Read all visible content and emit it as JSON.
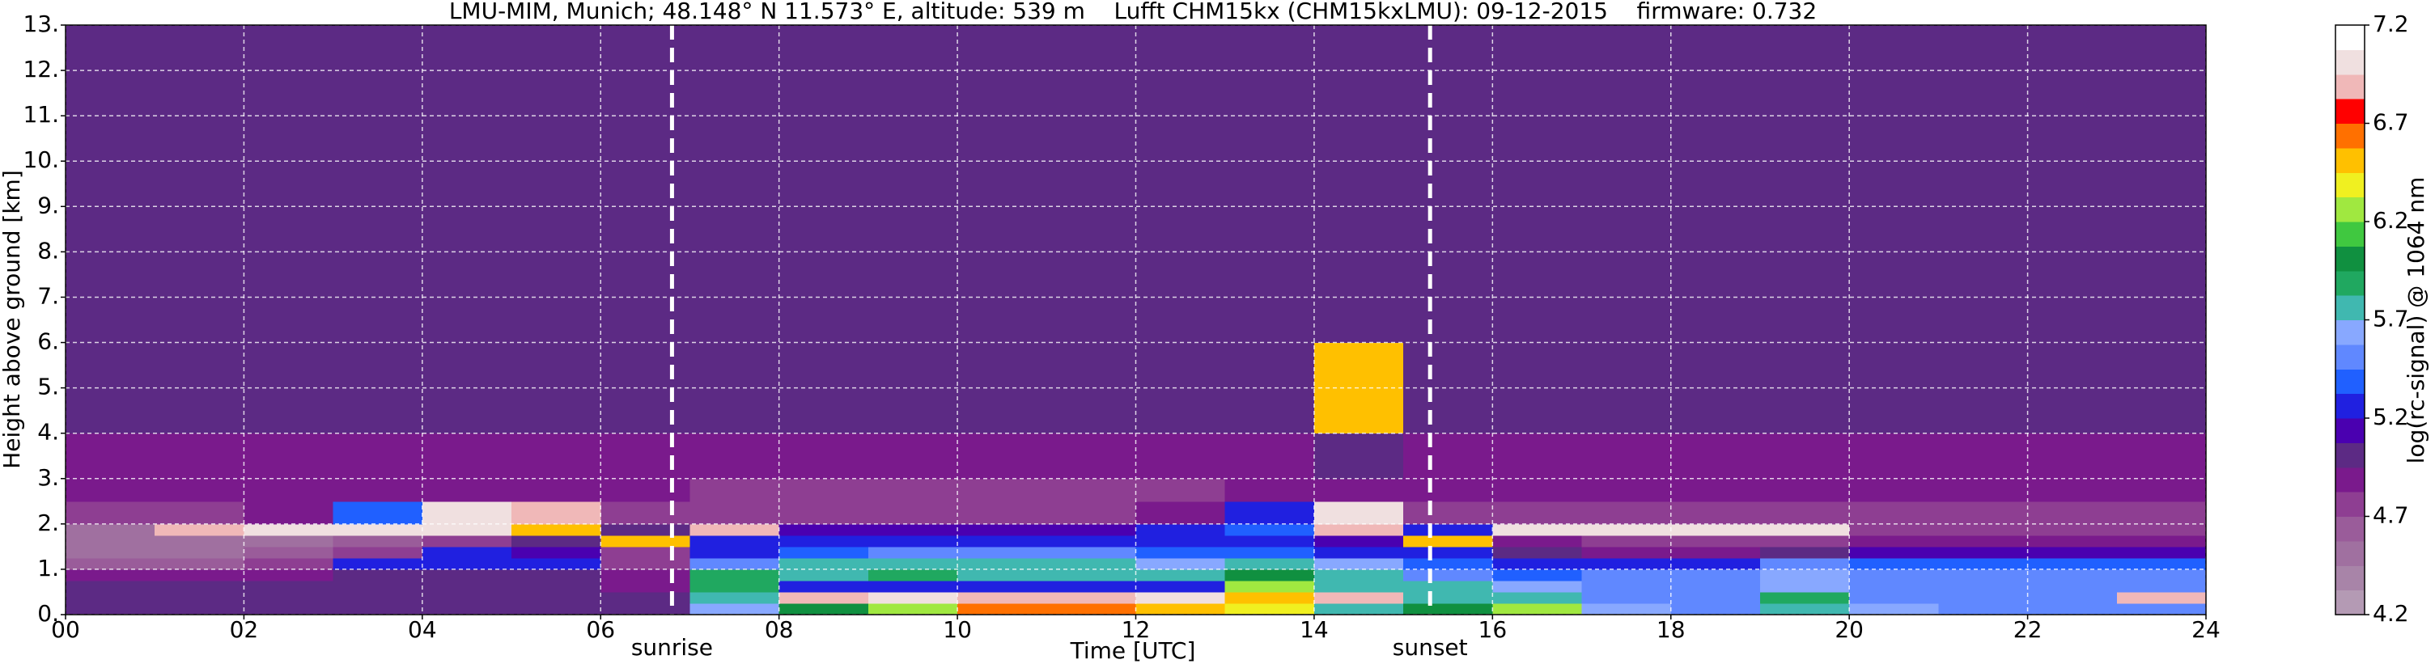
{
  "chart_data": {
    "type": "heatmap",
    "title": "LMU-MIM, Munich; 48.148° N 11.573° E, altitude: 539 m    Lufft CHM15kx (CHM15kxLMU): 09-12-2015    firmware: 0.732",
    "x_label": "Time [UTC]",
    "y_label": "Height above ground [km]",
    "xlim": [
      0,
      24
    ],
    "ylim": [
      0,
      13
    ],
    "xticks": [
      {
        "value": 0,
        "label": "00"
      },
      {
        "value": 2,
        "label": "02"
      },
      {
        "value": 4,
        "label": "04"
      },
      {
        "value": 6,
        "label": "06"
      },
      {
        "value": 8,
        "label": "08"
      },
      {
        "value": 10,
        "label": "10"
      },
      {
        "value": 12,
        "label": "12"
      },
      {
        "value": 14,
        "label": "14"
      },
      {
        "value": 16,
        "label": "16"
      },
      {
        "value": 18,
        "label": "18"
      },
      {
        "value": 20,
        "label": "20"
      },
      {
        "value": 22,
        "label": "22"
      },
      {
        "value": 24,
        "label": "24"
      }
    ],
    "yticks": [
      {
        "value": 0,
        "label": "0."
      },
      {
        "value": 1,
        "label": "1."
      },
      {
        "value": 2,
        "label": "2."
      },
      {
        "value": 3,
        "label": "3."
      },
      {
        "value": 4,
        "label": "4."
      },
      {
        "value": 5,
        "label": "5."
      },
      {
        "value": 6,
        "label": "6."
      },
      {
        "value": 7,
        "label": "7."
      },
      {
        "value": 8,
        "label": "8."
      },
      {
        "value": 9,
        "label": "9."
      },
      {
        "value": 10,
        "label": "10."
      },
      {
        "value": 11,
        "label": "11."
      },
      {
        "value": 12,
        "label": "12."
      },
      {
        "value": 13,
        "label": "13."
      }
    ],
    "grid": true,
    "x_edges": [
      0,
      1,
      2,
      3,
      4,
      5,
      6,
      7,
      8,
      9,
      10,
      11,
      12,
      13,
      14,
      15,
      16,
      17,
      18,
      19,
      20,
      21,
      22,
      23,
      24
    ],
    "y_edges": [
      0,
      0.25,
      0.5,
      0.75,
      1,
      1.25,
      1.5,
      1.75,
      2,
      2.5,
      3,
      4,
      6,
      9,
      13
    ],
    "values": [
      [
        5.0,
        5.0,
        5.0,
        5.0,
        5.0,
        5.0,
        5.0,
        5.6,
        6.0,
        6.3,
        6.6,
        6.6,
        6.5,
        6.4,
        5.8,
        6.0,
        6.3,
        5.6,
        5.5,
        5.8,
        5.6,
        5.5,
        5.5,
        5.5
      ],
      [
        5.0,
        5.0,
        5.0,
        5.0,
        5.0,
        5.0,
        5.0,
        5.8,
        6.9,
        7.0,
        6.9,
        6.9,
        7.0,
        6.5,
        6.9,
        5.8,
        5.8,
        5.5,
        5.5,
        5.9,
        5.5,
        5.5,
        5.5,
        6.9
      ],
      [
        5.0,
        5.0,
        5.0,
        5.0,
        5.0,
        5.0,
        4.9,
        5.9,
        5.3,
        5.3,
        5.2,
        5.2,
        5.3,
        6.3,
        5.8,
        5.7,
        5.6,
        5.5,
        5.5,
        5.6,
        5.5,
        5.5,
        5.5,
        5.5
      ],
      [
        4.9,
        4.9,
        4.9,
        5.0,
        5.0,
        5.0,
        4.9,
        5.9,
        5.8,
        5.9,
        5.8,
        5.8,
        5.8,
        6.0,
        5.8,
        5.5,
        5.4,
        5.5,
        5.5,
        5.6,
        5.5,
        5.5,
        5.5,
        5.5
      ],
      [
        4.6,
        4.6,
        4.7,
        5.2,
        5.3,
        5.2,
        4.8,
        5.5,
        5.7,
        5.8,
        5.8,
        5.7,
        5.6,
        5.7,
        5.6,
        5.4,
        5.3,
        5.2,
        5.2,
        5.5,
        5.4,
        5.4,
        5.4,
        5.4
      ],
      [
        4.5,
        4.5,
        4.6,
        4.8,
        5.2,
        5.1,
        4.7,
        5.3,
        5.4,
        5.5,
        5.5,
        5.5,
        5.4,
        5.4,
        5.3,
        5.2,
        5.0,
        4.9,
        4.9,
        5.0,
        5.1,
        5.1,
        5.1,
        5.1
      ],
      [
        4.5,
        4.5,
        4.5,
        4.6,
        4.8,
        5.0,
        6.5,
        5.2,
        5.3,
        5.3,
        5.3,
        5.3,
        5.3,
        5.3,
        5.1,
        6.5,
        4.9,
        4.8,
        4.8,
        4.8,
        4.9,
        4.9,
        4.9,
        4.9
      ],
      [
        4.5,
        6.9,
        7.0,
        7.0,
        7.0,
        6.5,
        5.0,
        6.9,
        5.1,
        5.1,
        5.1,
        5.1,
        5.2,
        5.4,
        6.9,
        5.2,
        7.0,
        7.0,
        7.0,
        7.0,
        4.8,
        4.8,
        4.8,
        4.8
      ],
      [
        4.8,
        4.8,
        4.9,
        5.4,
        7.0,
        6.9,
        4.8,
        4.8,
        4.8,
        4.8,
        4.8,
        4.8,
        4.9,
        5.2,
        7.0,
        4.8,
        4.8,
        4.8,
        4.8,
        4.8,
        4.8,
        4.8,
        4.8,
        4.8
      ],
      [
        4.9,
        4.9,
        4.9,
        4.9,
        4.9,
        4.9,
        4.9,
        4.8,
        4.8,
        4.8,
        4.8,
        4.8,
        4.8,
        4.9,
        4.9,
        4.9,
        4.9,
        4.9,
        4.9,
        4.9,
        4.9,
        4.9,
        4.9,
        4.9
      ],
      [
        4.9,
        4.9,
        4.9,
        4.9,
        4.9,
        4.9,
        4.9,
        4.9,
        4.9,
        4.9,
        4.9,
        4.9,
        4.9,
        4.9,
        5.0,
        4.9,
        4.9,
        4.9,
        4.9,
        4.9,
        4.9,
        4.9,
        4.9,
        4.9
      ],
      [
        5.0,
        5.0,
        5.0,
        5.0,
        5.0,
        5.0,
        5.0,
        5.0,
        5.0,
        5.0,
        5.0,
        5.0,
        5.0,
        5.0,
        6.5,
        5.0,
        5.0,
        5.0,
        5.0,
        5.0,
        5.0,
        5.0,
        5.0,
        5.0
      ],
      [
        5.0,
        5.0,
        5.0,
        5.0,
        5.0,
        5.0,
        5.0,
        5.0,
        5.0,
        5.0,
        5.0,
        5.0,
        5.0,
        5.0,
        5.0,
        5.0,
        5.0,
        5.0,
        5.0,
        5.0,
        5.0,
        5.0,
        5.0,
        5.0
      ],
      [
        5.0,
        5.0,
        5.0,
        5.0,
        5.0,
        5.0,
        5.0,
        5.0,
        5.0,
        5.0,
        5.0,
        5.0,
        5.0,
        5.0,
        5.0,
        5.0,
        5.0,
        5.0,
        5.0,
        5.0,
        5.0,
        5.0,
        5.0,
        5.0
      ]
    ],
    "events": [
      {
        "label": "sunrise",
        "x": 6.8
      },
      {
        "label": "sunset",
        "x": 15.3
      }
    ],
    "colorbar": {
      "label": "log(rc-signal) @ 1064 nm",
      "clim": [
        4.2,
        7.2
      ],
      "ticks": [
        4.2,
        4.7,
        5.2,
        5.7,
        6.2,
        6.7,
        7.2
      ],
      "colors": [
        "#b49ab4",
        "#a884a8",
        "#a070a0",
        "#9a5c9a",
        "#8e3e92",
        "#7a1a8c",
        "#5c2a84",
        "#4a00b0",
        "#2020e0",
        "#2060ff",
        "#6088ff",
        "#88a8ff",
        "#40b8b0",
        "#20a860",
        "#109040",
        "#40c840",
        "#a0e840",
        "#f0f020",
        "#ffc000",
        "#ff7000",
        "#ff0000",
        "#f0b8b8",
        "#f0e0e0",
        "#ffffff"
      ]
    }
  }
}
